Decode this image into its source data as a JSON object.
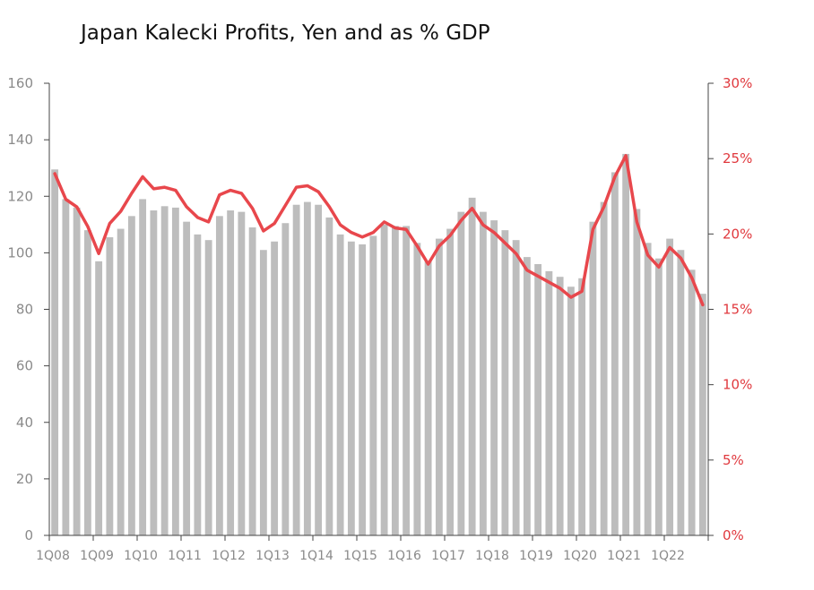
{
  "chart_data": {
    "type": "bar",
    "title": "Japan Kalecki Profits, Yen and as % GDP",
    "xlabel": "",
    "ylabel": "",
    "ylim": [
      0,
      160
    ],
    "ylim_right": [
      0,
      30
    ],
    "yticks_left": [
      "0",
      "20",
      "40",
      "60",
      "80",
      "100",
      "120",
      "140",
      "160"
    ],
    "yticks_right": [
      "0%",
      "5%",
      "10%",
      "15%",
      "20%",
      "25%",
      "30%"
    ],
    "x_tick_labels": [
      "1Q08",
      "1Q09",
      "1Q10",
      "1Q11",
      "1Q12",
      "1Q13",
      "1Q14",
      "1Q15",
      "1Q16",
      "1Q17",
      "1Q18",
      "1Q19",
      "1Q20",
      "1Q21",
      "1Q22"
    ],
    "bar_color": "#bdbdbd",
    "line_color": "#e8474c",
    "right_axis_color": "#e0393e",
    "series": [
      {
        "type": "bar",
        "axis": "left",
        "values": [
          129.5,
          119,
          116,
          108,
          97,
          105.5,
          108.5,
          113,
          119,
          115,
          116.5,
          116,
          111,
          106.5,
          104.5,
          113,
          115,
          114.5,
          109,
          101,
          104,
          110.5,
          117,
          118,
          117,
          112.5,
          106.5,
          104,
          103,
          106,
          110,
          109.5,
          109.5,
          103.5,
          97,
          105,
          108.5,
          114.5,
          119.5,
          114.5,
          111.5,
          108,
          104.5,
          98.5,
          96,
          93.5,
          91.5,
          88,
          91,
          111,
          118,
          128.5,
          135,
          115.5,
          103.5,
          98,
          105,
          101,
          94,
          85.5
        ]
      },
      {
        "type": "line",
        "axis": "right",
        "values": [
          24,
          22.3,
          21.8,
          20.5,
          18.7,
          20.7,
          21.5,
          22.7,
          23.8,
          23,
          23.1,
          22.9,
          21.8,
          21.1,
          20.8,
          22.6,
          22.9,
          22.7,
          21.7,
          20.2,
          20.7,
          21.9,
          23.1,
          23.2,
          22.8,
          21.8,
          20.6,
          20.1,
          19.8,
          20.1,
          20.8,
          20.4,
          20.3,
          19.2,
          18,
          19.2,
          19.9,
          20.9,
          21.7,
          20.6,
          20.1,
          19.4,
          18.7,
          17.6,
          17.2,
          16.8,
          16.4,
          15.8,
          16.2,
          20.3,
          21.8,
          23.8,
          25.2,
          20.8,
          18.6,
          17.8,
          19.1,
          18.4,
          17.1,
          15.3
        ]
      }
    ]
  }
}
